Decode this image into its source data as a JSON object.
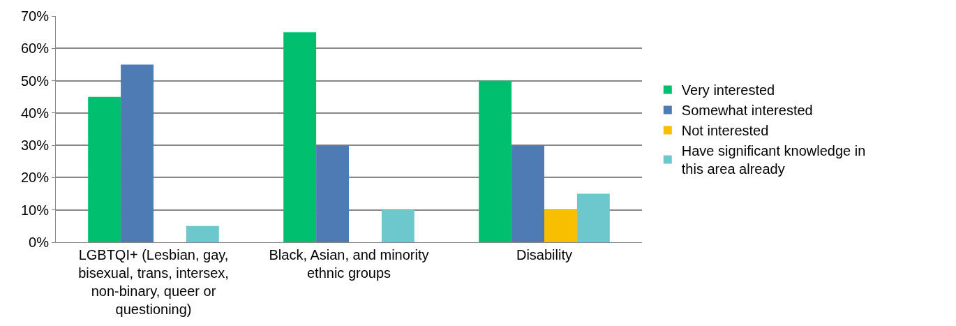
{
  "chart_data": {
    "type": "bar",
    "categories": [
      "LGBTQI+ (Lesbian, gay, bisexual, trans, intersex, non-binary, queer or questioning)",
      "Black, Asian, and minority ethnic groups",
      "Disability"
    ],
    "series": [
      {
        "name": "Very interested",
        "color": "#00bf6f",
        "values": [
          45,
          65,
          50
        ]
      },
      {
        "name": "Somewhat interested",
        "color": "#4f7bb5",
        "values": [
          55,
          30,
          30
        ]
      },
      {
        "name": "Not interested",
        "color": "#f8be00",
        "values": [
          0,
          0,
          10
        ]
      },
      {
        "name": "Have significant knowledge in this area already",
        "color": "#6cc8cc",
        "values": [
          5,
          10,
          15
        ]
      }
    ],
    "ylim": [
      0,
      70
    ],
    "yticks": [
      {
        "value": 0,
        "label": "0%"
      },
      {
        "value": 10,
        "label": "10%"
      },
      {
        "value": 20,
        "label": "20%"
      },
      {
        "value": 30,
        "label": "30%"
      },
      {
        "value": 40,
        "label": "40%"
      },
      {
        "value": 50,
        "label": "50%"
      },
      {
        "value": 60,
        "label": "60%"
      },
      {
        "value": 70,
        "label": "70%"
      }
    ],
    "grid": "y",
    "legend": "right"
  }
}
